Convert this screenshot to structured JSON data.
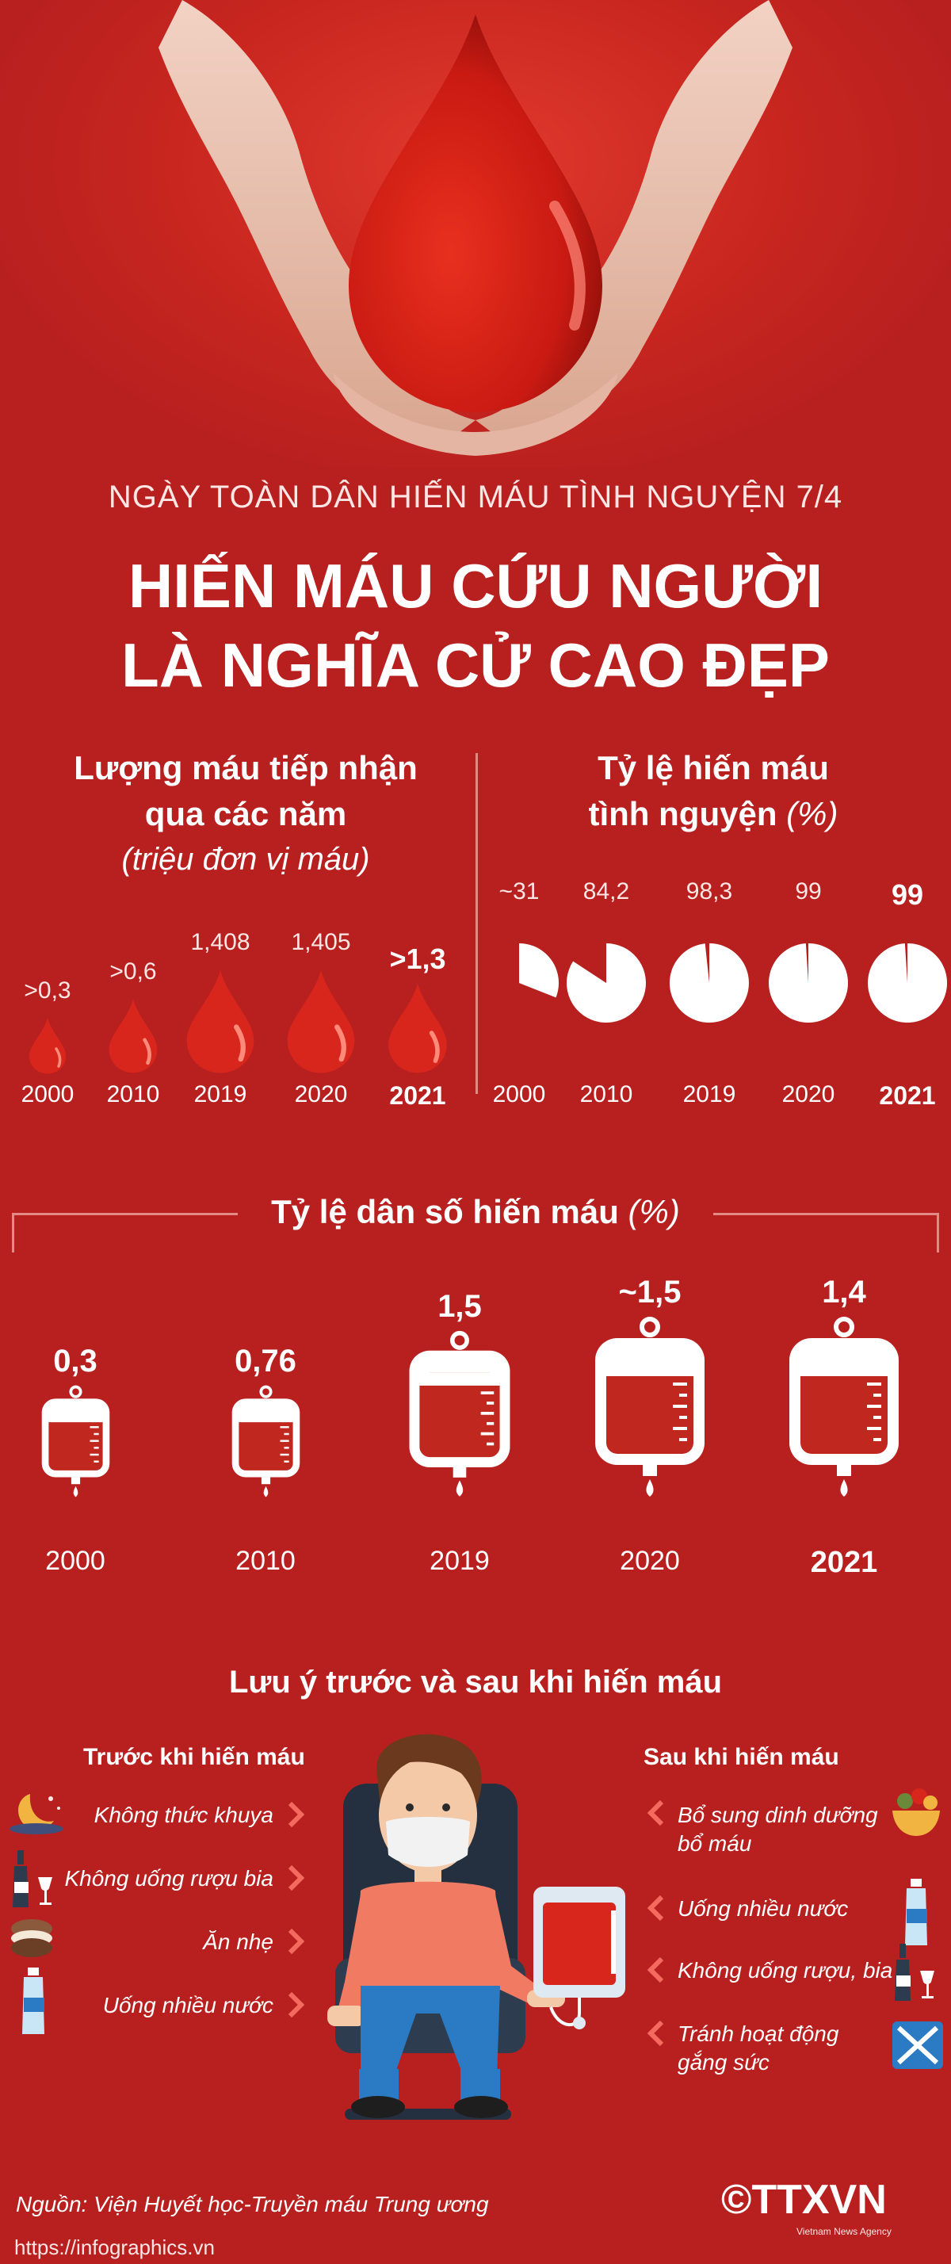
{
  "header": {
    "subtitle": "NGÀY TOÀN DÂN HIẾN MÁU TÌNH NGUYỆN 7/4",
    "title_line1": "HIẾN MÁU CỨU NGƯỜI",
    "title_line2": "LÀ NGHĨA CỬ CAO ĐẸP"
  },
  "blood_volume": {
    "title_line1": "Lượng máu tiếp nhận",
    "title_line2": "qua các năm",
    "unit": "(triệu đơn vị máu)",
    "items": [
      {
        "year": "2000",
        "value": ">0,3"
      },
      {
        "year": "2010",
        "value": ">0,6"
      },
      {
        "year": "2019",
        "value": "1,408"
      },
      {
        "year": "2020",
        "value": "1,405"
      },
      {
        "year": "2021",
        "value": ">1,3"
      }
    ]
  },
  "voluntary_rate": {
    "title_line1": "Tỷ lệ hiến máu",
    "title_line2": "tình nguyện",
    "unit": "(%)",
    "items": [
      {
        "year": "2000",
        "value": "~31",
        "percent": 31
      },
      {
        "year": "2010",
        "value": "84,2",
        "percent": 84.2
      },
      {
        "year": "2019",
        "value": "98,3",
        "percent": 98.3
      },
      {
        "year": "2020",
        "value": "99",
        "percent": 99
      },
      {
        "year": "2021",
        "value": "99",
        "percent": 99
      }
    ]
  },
  "population_rate": {
    "title": "Tỷ lệ dân số hiến máu",
    "unit": "(%)",
    "items": [
      {
        "year": "2000",
        "value": "0,3"
      },
      {
        "year": "2010",
        "value": "0,76"
      },
      {
        "year": "2019",
        "value": "1,5"
      },
      {
        "year": "2020",
        "value": "~1,5"
      },
      {
        "year": "2021",
        "value": "1,4"
      }
    ]
  },
  "notes": {
    "title": "Lưu ý trước và sau khi hiến máu",
    "before_title": "Trước khi hiến máu",
    "before": [
      "Không thức khuya",
      "Không uống rượu bia",
      "Ăn nhẹ",
      "Uống nhiều nước"
    ],
    "after_title": "Sau khi hiến máu",
    "after": [
      "Bổ sung dinh dưỡng",
      "bổ máu",
      "Uống nhiều nước",
      "Không uống rượu, bia",
      "Tránh hoạt động",
      "gắng sức"
    ]
  },
  "footer": {
    "source": "Nguồn: Viện Huyết học-Truyền máu Trung ương",
    "url": "https://infographics.vn",
    "logo": "©TTXVN",
    "logo_sub": "Vietnam News Agency"
  },
  "colors": {
    "background": "#b8201f",
    "blood": "#d9261c",
    "accent": "#e48a84"
  }
}
